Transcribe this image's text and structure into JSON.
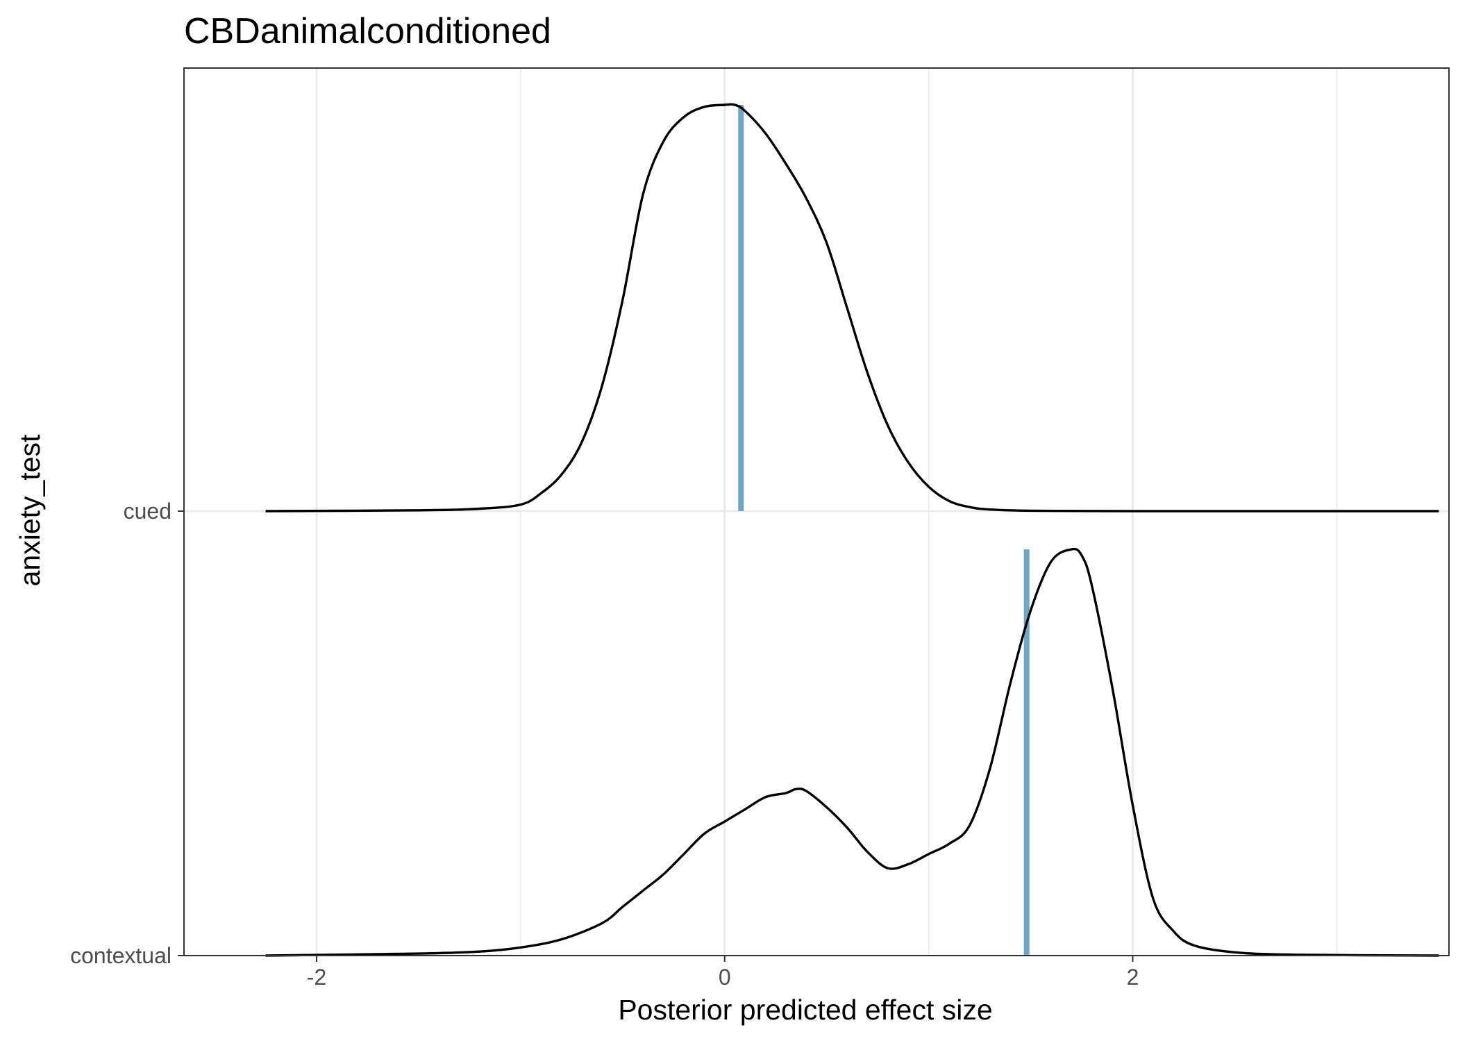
{
  "chart_data": {
    "type": "ridgeline-density",
    "title": "CBDanimalconditioned",
    "xlabel": "Posterior predicted effect size",
    "ylabel": "anxiety_test",
    "xlim": [
      -2.65,
      3.55
    ],
    "x_ticks": [
      -2,
      0,
      2
    ],
    "x_tick_labels": [
      "-2",
      "0",
      "2"
    ],
    "categories": [
      "contextual",
      "cued"
    ],
    "grid": true,
    "legend": "none",
    "line_color": "#000000",
    "marker_color": "#6ea6c8",
    "series": [
      {
        "name": "cued",
        "marker_x": 0.08,
        "x": [
          -2.25,
          -1.5,
          -1.2,
          -1.0,
          -0.9,
          -0.8,
          -0.7,
          -0.6,
          -0.5,
          -0.4,
          -0.3,
          -0.2,
          -0.1,
          0.0,
          0.05,
          0.1,
          0.2,
          0.3,
          0.4,
          0.5,
          0.6,
          0.7,
          0.8,
          0.9,
          1.0,
          1.1,
          1.2,
          1.3,
          1.5,
          2.0,
          3.5
        ],
        "density": [
          0.0,
          0.002,
          0.006,
          0.016,
          0.044,
          0.09,
          0.17,
          0.31,
          0.52,
          0.78,
          0.91,
          0.97,
          0.995,
          1.0,
          1.0,
          0.985,
          0.93,
          0.855,
          0.77,
          0.66,
          0.5,
          0.34,
          0.21,
          0.12,
          0.06,
          0.025,
          0.01,
          0.004,
          0.001,
          0.0,
          0.0
        ]
      },
      {
        "name": "contextual",
        "marker_x": 1.48,
        "x": [
          -2.25,
          -1.5,
          -1.2,
          -1.0,
          -0.8,
          -0.6,
          -0.5,
          -0.4,
          -0.3,
          -0.2,
          -0.1,
          0.0,
          0.1,
          0.2,
          0.3,
          0.35,
          0.4,
          0.5,
          0.6,
          0.7,
          0.8,
          0.9,
          1.0,
          1.1,
          1.2,
          1.3,
          1.4,
          1.5,
          1.6,
          1.7,
          1.75,
          1.8,
          1.9,
          2.0,
          2.1,
          2.2,
          2.3,
          2.5,
          2.8,
          3.5
        ],
        "density": [
          0.0,
          0.005,
          0.01,
          0.02,
          0.04,
          0.08,
          0.12,
          0.16,
          0.2,
          0.25,
          0.3,
          0.33,
          0.36,
          0.39,
          0.4,
          0.41,
          0.405,
          0.365,
          0.315,
          0.255,
          0.215,
          0.225,
          0.25,
          0.275,
          0.32,
          0.46,
          0.67,
          0.85,
          0.97,
          1.0,
          0.985,
          0.91,
          0.66,
          0.37,
          0.14,
          0.06,
          0.025,
          0.008,
          0.002,
          0.0
        ]
      }
    ]
  }
}
